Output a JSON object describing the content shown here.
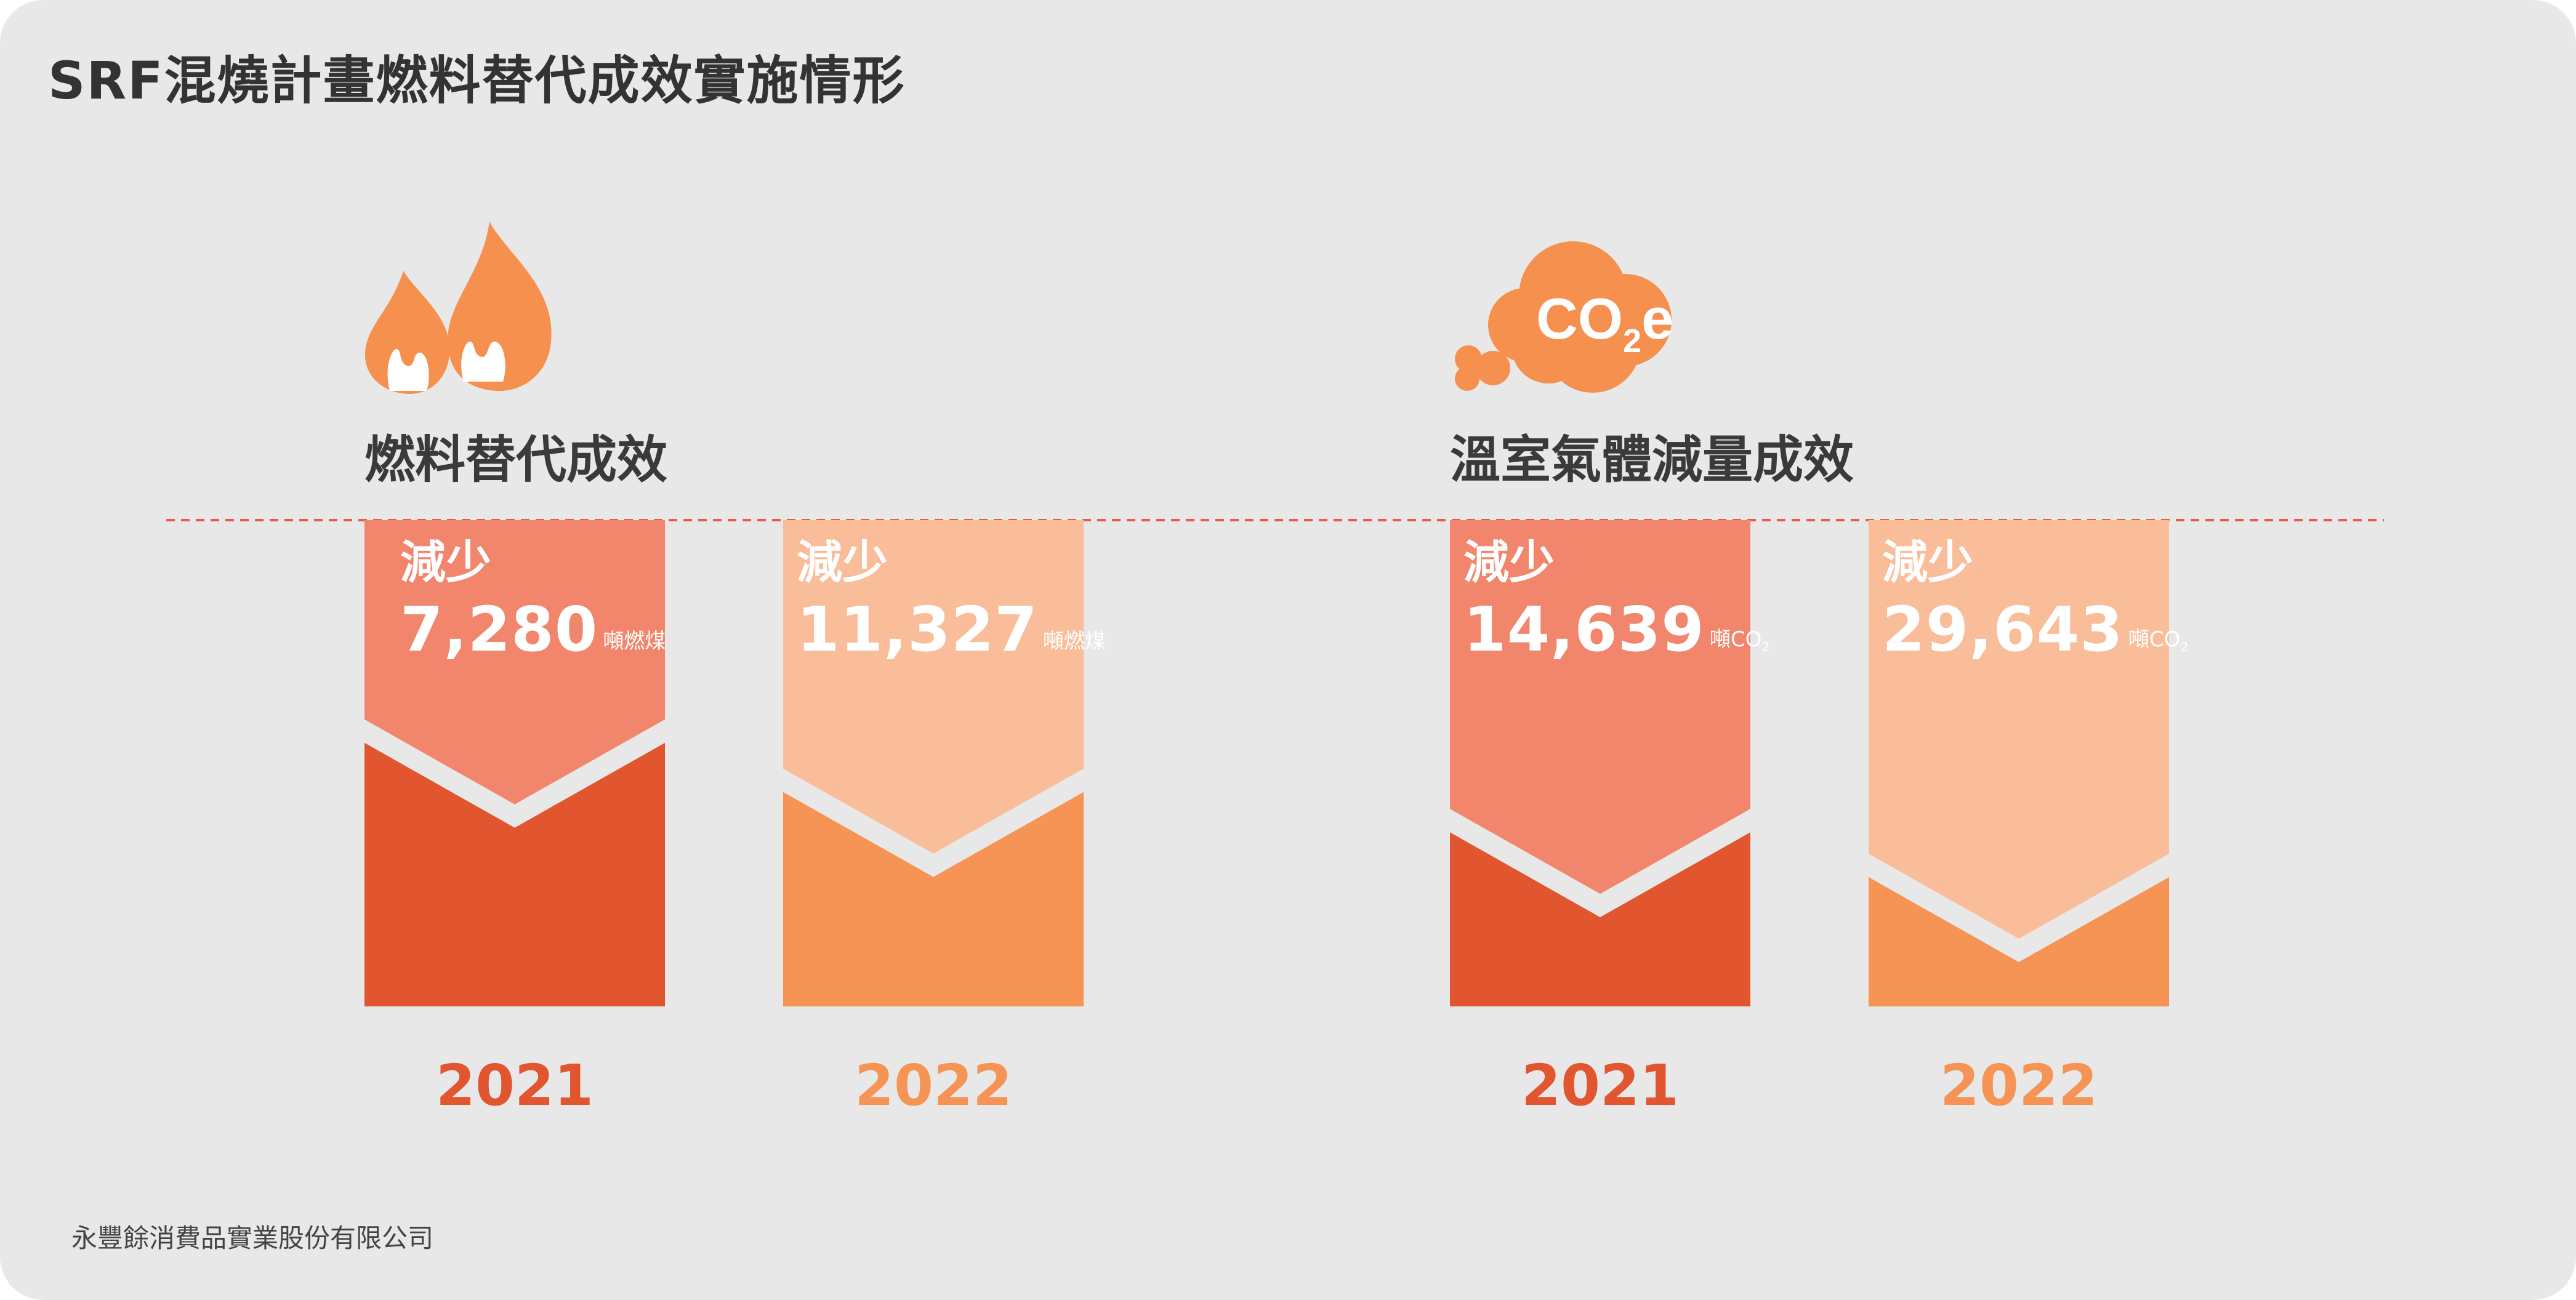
{
  "title": "SRF混燒計畫燃料替代成效實施情形",
  "footer": "永豐餘消費品實業股份有限公司",
  "icons": {
    "fuel": "flame-icon",
    "ghg": "co2e-cloud-icon"
  },
  "co2e_icon_text": {
    "main": "CO",
    "sub": "2",
    "tail": "e"
  },
  "colors": {
    "dark_2021": "#e1552f",
    "light_2021": "#f1866d",
    "dark_2022": "#f59454",
    "light_2022": "#fabd9a",
    "dashed_line": "#e95b44",
    "icon": "#f5904f"
  },
  "chart_data": [
    {
      "type": "bar",
      "title": "燃料替代成效",
      "categories": [
        "2021",
        "2022"
      ],
      "label": "減少",
      "values": [
        7280,
        11327
      ],
      "value_labels": [
        "7,280",
        "11,327"
      ],
      "unit": "噸燃煤"
    },
    {
      "type": "bar",
      "title": "溫室氣體減量成效",
      "categories": [
        "2021",
        "2022"
      ],
      "label": "減少",
      "values": [
        14639,
        29643
      ],
      "value_labels": [
        "14,639",
        "29,643"
      ],
      "unit": "噸CO2"
    }
  ]
}
